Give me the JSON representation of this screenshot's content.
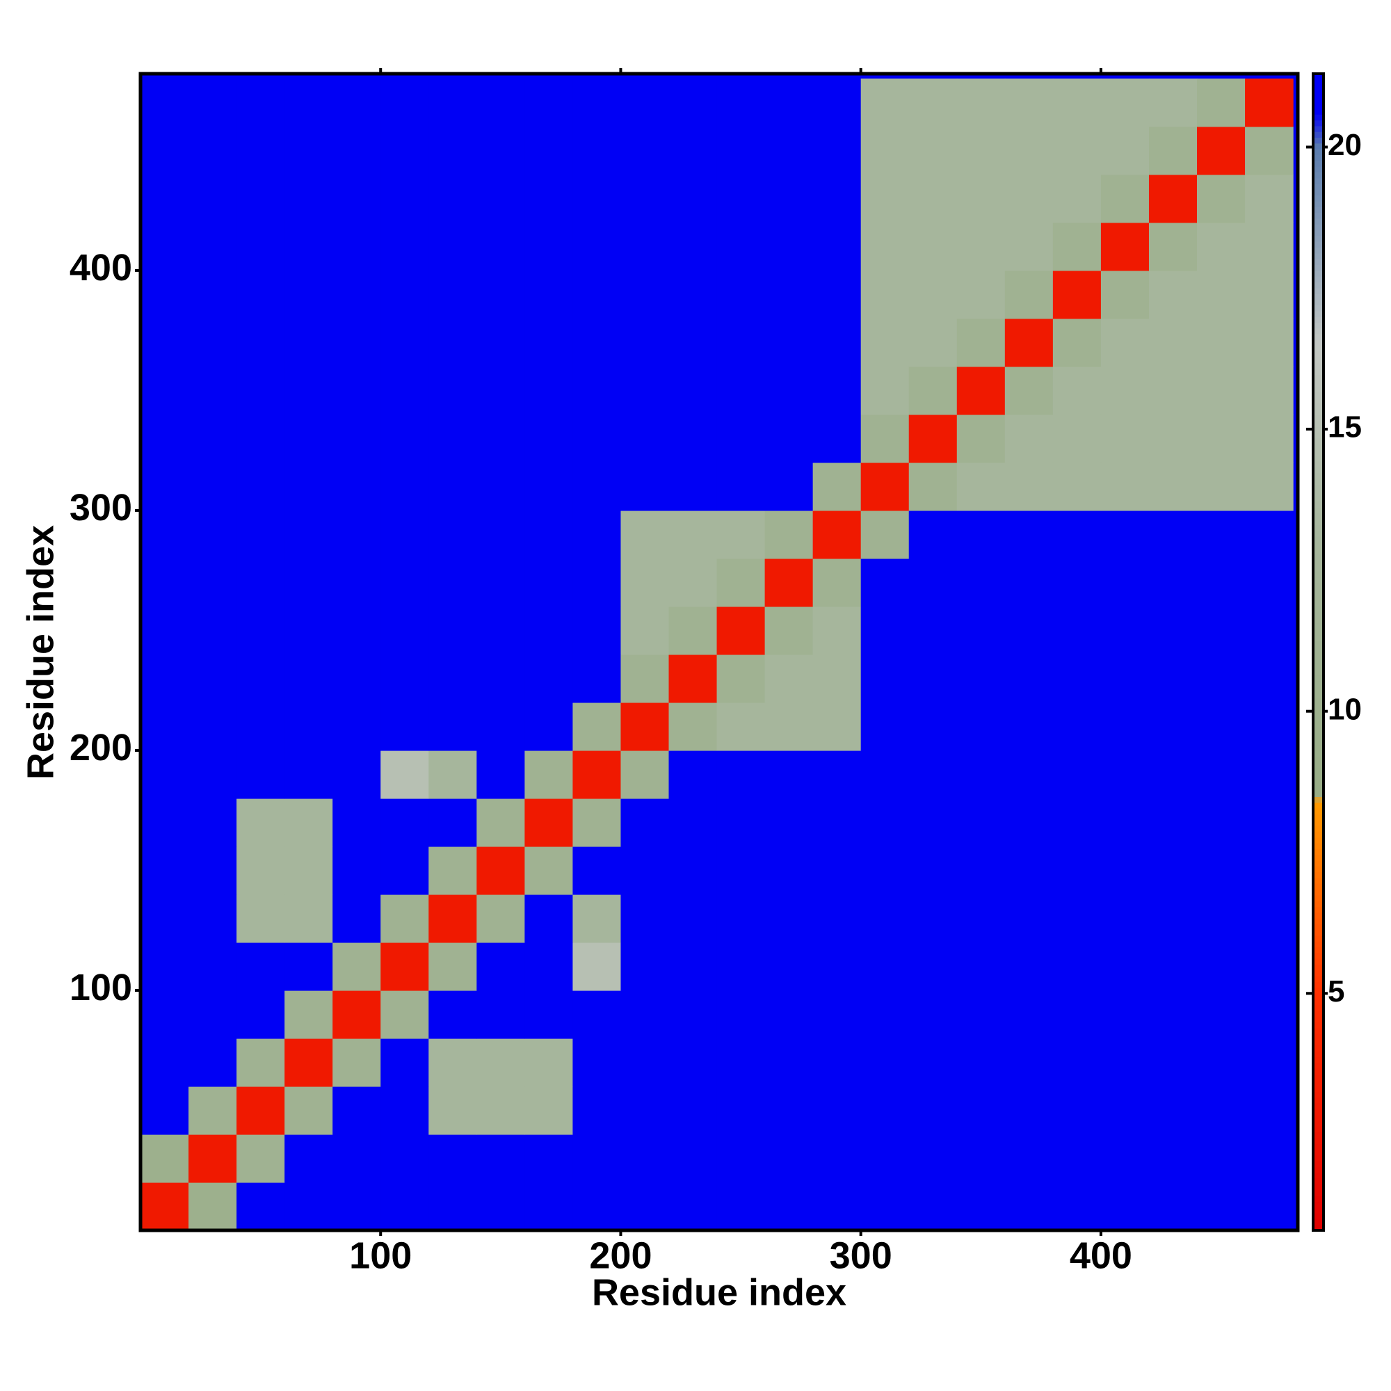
{
  "chart_data": {
    "type": "heatmap",
    "x_label": "Residue index",
    "y_label": "Residue index",
    "bins": [
      0,
      20,
      40,
      60,
      80,
      100,
      120,
      140,
      160,
      180,
      200,
      220,
      240,
      260,
      280,
      300,
      320,
      340,
      360,
      380,
      400,
      420,
      440,
      460,
      480
    ],
    "z": [
      [
        3,
        10,
        21,
        21,
        21,
        21,
        21,
        21,
        21,
        21,
        21,
        21,
        21,
        21,
        21,
        21,
        21,
        21,
        21,
        21,
        21,
        21,
        21,
        21
      ],
      [
        10,
        3,
        11,
        21,
        21,
        21,
        21,
        21,
        21,
        21,
        21,
        21,
        21,
        21,
        21,
        21,
        21,
        21,
        21,
        21,
        21,
        21,
        21,
        21
      ],
      [
        21,
        11,
        3,
        11,
        21,
        21,
        13,
        13,
        13,
        21,
        21,
        21,
        21,
        21,
        21,
        21,
        21,
        21,
        21,
        21,
        21,
        21,
        21,
        21
      ],
      [
        21,
        21,
        11,
        3,
        11,
        21,
        13,
        13,
        13,
        21,
        21,
        21,
        21,
        21,
        21,
        21,
        21,
        21,
        21,
        21,
        21,
        21,
        21,
        21
      ],
      [
        21,
        21,
        21,
        11,
        3,
        11,
        21,
        21,
        21,
        21,
        21,
        21,
        21,
        21,
        21,
        21,
        21,
        21,
        21,
        21,
        21,
        21,
        21,
        21
      ],
      [
        21,
        21,
        21,
        21,
        11,
        3,
        11,
        21,
        21,
        15,
        21,
        21,
        21,
        21,
        21,
        21,
        21,
        21,
        21,
        21,
        21,
        21,
        21,
        21
      ],
      [
        21,
        21,
        13,
        13,
        21,
        11,
        3,
        11,
        21,
        13,
        21,
        21,
        21,
        21,
        21,
        21,
        21,
        21,
        21,
        21,
        21,
        21,
        21,
        21
      ],
      [
        21,
        21,
        13,
        13,
        21,
        21,
        11,
        3,
        11,
        21,
        21,
        21,
        21,
        21,
        21,
        21,
        21,
        21,
        21,
        21,
        21,
        21,
        21,
        21
      ],
      [
        21,
        21,
        13,
        13,
        21,
        21,
        21,
        11,
        3,
        11,
        21,
        21,
        21,
        21,
        21,
        21,
        21,
        21,
        21,
        21,
        21,
        21,
        21,
        21
      ],
      [
        21,
        21,
        21,
        21,
        21,
        15,
        13,
        21,
        11,
        3,
        11,
        21,
        21,
        21,
        21,
        21,
        21,
        21,
        21,
        21,
        21,
        21,
        21,
        21
      ],
      [
        21,
        21,
        21,
        21,
        21,
        21,
        21,
        21,
        21,
        11,
        3,
        11,
        13,
        13,
        13,
        21,
        21,
        21,
        21,
        21,
        21,
        21,
        21,
        21
      ],
      [
        21,
        21,
        21,
        21,
        21,
        21,
        21,
        21,
        21,
        21,
        11,
        3,
        11,
        13,
        13,
        21,
        21,
        21,
        21,
        21,
        21,
        21,
        21,
        21
      ],
      [
        21,
        21,
        21,
        21,
        21,
        21,
        21,
        21,
        21,
        21,
        13,
        11,
        3,
        11,
        13,
        21,
        21,
        21,
        21,
        21,
        21,
        21,
        21,
        21
      ],
      [
        21,
        21,
        21,
        21,
        21,
        21,
        21,
        21,
        21,
        21,
        13,
        13,
        11,
        3,
        11,
        21,
        21,
        21,
        21,
        21,
        21,
        21,
        21,
        21
      ],
      [
        21,
        21,
        21,
        21,
        21,
        21,
        21,
        21,
        21,
        21,
        13,
        13,
        13,
        11,
        3,
        11,
        21,
        21,
        21,
        21,
        21,
        21,
        21,
        21
      ],
      [
        21,
        21,
        21,
        21,
        21,
        21,
        21,
        21,
        21,
        21,
        21,
        21,
        21,
        21,
        11,
        3,
        11,
        13,
        13,
        13,
        13,
        13,
        13,
        13
      ],
      [
        21,
        21,
        21,
        21,
        21,
        21,
        21,
        21,
        21,
        21,
        21,
        21,
        21,
        21,
        21,
        11,
        3,
        11,
        13,
        13,
        13,
        13,
        13,
        13
      ],
      [
        21,
        21,
        21,
        21,
        21,
        21,
        21,
        21,
        21,
        21,
        21,
        21,
        21,
        21,
        21,
        13,
        11,
        3,
        11,
        13,
        13,
        13,
        13,
        13
      ],
      [
        21,
        21,
        21,
        21,
        21,
        21,
        21,
        21,
        21,
        21,
        21,
        21,
        21,
        21,
        21,
        13,
        13,
        11,
        3,
        11,
        13,
        13,
        13,
        13
      ],
      [
        21,
        21,
        21,
        21,
        21,
        21,
        21,
        21,
        21,
        21,
        21,
        21,
        21,
        21,
        21,
        13,
        13,
        13,
        11,
        3,
        11,
        13,
        13,
        13
      ],
      [
        21,
        21,
        21,
        21,
        21,
        21,
        21,
        21,
        21,
        21,
        21,
        21,
        21,
        21,
        21,
        13,
        13,
        13,
        13,
        11,
        3,
        11,
        13,
        13
      ],
      [
        21,
        21,
        21,
        21,
        21,
        21,
        21,
        21,
        21,
        21,
        21,
        21,
        21,
        21,
        21,
        13,
        13,
        13,
        13,
        13,
        11,
        3,
        11,
        13
      ],
      [
        21,
        21,
        21,
        21,
        21,
        21,
        21,
        21,
        21,
        21,
        21,
        21,
        21,
        21,
        21,
        13,
        13,
        13,
        13,
        13,
        13,
        11,
        3,
        11
      ],
      [
        21,
        21,
        21,
        21,
        21,
        21,
        21,
        21,
        21,
        21,
        21,
        21,
        21,
        21,
        21,
        13,
        13,
        13,
        13,
        13,
        13,
        13,
        11,
        3
      ]
    ],
    "xlim": [
      0,
      482
    ],
    "ylim": [
      0,
      482
    ],
    "xticks": [
      100,
      200,
      300,
      400
    ],
    "yticks": [
      100,
      200,
      300,
      400
    ],
    "zlim": [
      0.8,
      21.3
    ],
    "zticks": [
      5,
      10,
      15,
      20
    ],
    "colorscale": [
      [
        0.8,
        "#e00000"
      ],
      [
        5,
        "#ff3000"
      ],
      [
        8.4,
        "#ff9a00"
      ],
      [
        8.5,
        "#98ad86"
      ],
      [
        13,
        "#a6b69c"
      ],
      [
        16.5,
        "#c4c8c4"
      ],
      [
        20,
        "#5a7cae"
      ],
      [
        20.6,
        "#0000f5"
      ],
      [
        21.3,
        "#0000f5"
      ]
    ]
  }
}
